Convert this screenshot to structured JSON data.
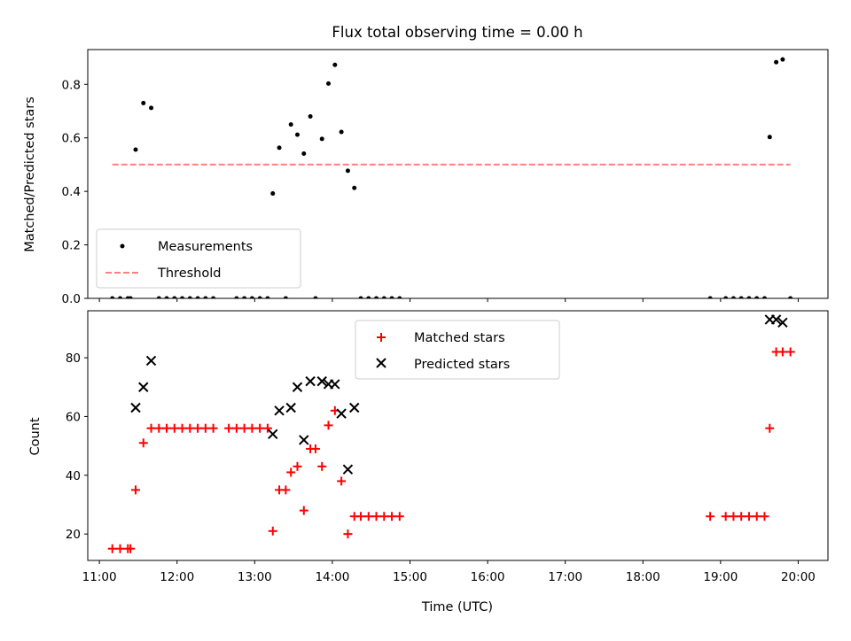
{
  "chart_data": [
    {
      "type": "scatter",
      "title": "Flux total observing time = 0.00 h",
      "xlabel": "",
      "ylabel": "Matched/Predicted stars",
      "xlim": [
        "10:51",
        "20:23"
      ],
      "ylim": [
        0,
        0.93
      ],
      "yticks": [
        0.0,
        0.2,
        0.4,
        0.6,
        0.8
      ],
      "ytick_labels": [
        "0.0",
        "0.2",
        "0.4",
        "0.6",
        "0.8"
      ],
      "legend": {
        "placement": "lower-left"
      },
      "series": [
        {
          "name": "Measurements",
          "kind": "scatter",
          "color": "#000000",
          "points": [
            [
              "11:10",
              0
            ],
            [
              "11:16",
              0
            ],
            [
              "11:22",
              0
            ],
            [
              "11:24",
              0
            ],
            [
              "11:28",
              0.556
            ],
            [
              "11:34",
              0.73
            ],
            [
              "11:40",
              0.712
            ],
            [
              "11:46",
              0
            ],
            [
              "11:52",
              0
            ],
            [
              "11:58",
              0
            ],
            [
              "12:04",
              0
            ],
            [
              "12:10",
              0
            ],
            [
              "12:16",
              0
            ],
            [
              "12:22",
              0
            ],
            [
              "12:28",
              0
            ],
            [
              "12:46",
              0
            ],
            [
              "12:52",
              0
            ],
            [
              "12:58",
              0
            ],
            [
              "13:04",
              0
            ],
            [
              "13:10",
              0
            ],
            [
              "13:14",
              0.392
            ],
            [
              "13:19",
              0.563
            ],
            [
              "13:24",
              0
            ],
            [
              "13:28",
              0.65
            ],
            [
              "13:33",
              0.612
            ],
            [
              "13:38",
              0.541
            ],
            [
              "13:43",
              0.68
            ],
            [
              "13:47",
              0
            ],
            [
              "13:52",
              0.596
            ],
            [
              "13:57",
              0.803
            ],
            [
              "14:02",
              0.873
            ],
            [
              "14:07",
              0.622
            ],
            [
              "14:12",
              0.477
            ],
            [
              "14:17",
              0.413
            ],
            [
              "14:22",
              0
            ],
            [
              "14:28",
              0
            ],
            [
              "14:34",
              0
            ],
            [
              "14:40",
              0
            ],
            [
              "14:46",
              0
            ],
            [
              "14:52",
              0
            ],
            [
              "18:52",
              0
            ],
            [
              "19:04",
              0
            ],
            [
              "19:10",
              0
            ],
            [
              "19:16",
              0
            ],
            [
              "19:22",
              0
            ],
            [
              "19:28",
              0
            ],
            [
              "19:34",
              0
            ],
            [
              "19:38",
              0.603
            ],
            [
              "19:43",
              0.883
            ],
            [
              "19:48",
              0.893
            ],
            [
              "19:54",
              0
            ]
          ]
        },
        {
          "name": "Threshold",
          "kind": "line",
          "style": "dashed",
          "color": "#ff7f7f",
          "points": [
            [
              "11:10",
              0.5
            ],
            [
              "19:54",
              0.5
            ]
          ]
        }
      ]
    },
    {
      "type": "scatter",
      "title": "",
      "xlabel": "Time (UTC)",
      "ylabel": "Count",
      "xlim": [
        "10:51",
        "20:23"
      ],
      "ylim": [
        11,
        96
      ],
      "yticks": [
        20,
        40,
        60,
        80
      ],
      "ytick_labels": [
        "20",
        "40",
        "60",
        "80"
      ],
      "xticks": [
        "11:00",
        "12:00",
        "13:00",
        "14:00",
        "15:00",
        "16:00",
        "17:00",
        "18:00",
        "19:00",
        "20:00"
      ],
      "xtick_labels": [
        "11:00",
        "12:00",
        "13:00",
        "14:00",
        "15:00",
        "16:00",
        "17:00",
        "18:00",
        "19:00",
        "20:00"
      ],
      "legend": {
        "placement": "upper-center"
      },
      "series": [
        {
          "name": "Matched stars",
          "kind": "scatter",
          "marker": "plus",
          "color": "#ff0000",
          "points": [
            [
              "11:10",
              15
            ],
            [
              "11:16",
              15
            ],
            [
              "11:22",
              15
            ],
            [
              "11:24",
              15
            ],
            [
              "11:28",
              35
            ],
            [
              "11:34",
              51
            ],
            [
              "11:40",
              56
            ],
            [
              "11:46",
              56
            ],
            [
              "11:52",
              56
            ],
            [
              "11:58",
              56
            ],
            [
              "12:04",
              56
            ],
            [
              "12:10",
              56
            ],
            [
              "12:16",
              56
            ],
            [
              "12:22",
              56
            ],
            [
              "12:28",
              56
            ],
            [
              "12:40",
              56
            ],
            [
              "12:46",
              56
            ],
            [
              "12:52",
              56
            ],
            [
              "12:58",
              56
            ],
            [
              "13:04",
              56
            ],
            [
              "13:10",
              56
            ],
            [
              "13:14",
              21
            ],
            [
              "13:19",
              35
            ],
            [
              "13:24",
              35
            ],
            [
              "13:28",
              41
            ],
            [
              "13:33",
              43
            ],
            [
              "13:38",
              28
            ],
            [
              "13:43",
              49
            ],
            [
              "13:47",
              49
            ],
            [
              "13:52",
              43
            ],
            [
              "13:57",
              57
            ],
            [
              "14:02",
              62
            ],
            [
              "14:07",
              38
            ],
            [
              "14:12",
              20
            ],
            [
              "14:17",
              26
            ],
            [
              "14:22",
              26
            ],
            [
              "14:28",
              26
            ],
            [
              "14:34",
              26
            ],
            [
              "14:40",
              26
            ],
            [
              "14:46",
              26
            ],
            [
              "14:52",
              26
            ],
            [
              "18:52",
              26
            ],
            [
              "19:04",
              26
            ],
            [
              "19:10",
              26
            ],
            [
              "19:16",
              26
            ],
            [
              "19:22",
              26
            ],
            [
              "19:28",
              26
            ],
            [
              "19:34",
              26
            ],
            [
              "19:38",
              56
            ],
            [
              "19:43",
              82
            ],
            [
              "19:48",
              82
            ],
            [
              "19:54",
              82
            ]
          ]
        },
        {
          "name": "Predicted stars",
          "kind": "scatter",
          "marker": "x",
          "color": "#000000",
          "points": [
            [
              "11:28",
              63
            ],
            [
              "11:34",
              70
            ],
            [
              "11:40",
              79
            ],
            [
              "13:14",
              54
            ],
            [
              "13:19",
              62
            ],
            [
              "13:28",
              63
            ],
            [
              "13:33",
              70
            ],
            [
              "13:38",
              52
            ],
            [
              "13:43",
              72
            ],
            [
              "13:52",
              72
            ],
            [
              "13:57",
              71
            ],
            [
              "14:02",
              71
            ],
            [
              "14:07",
              61
            ],
            [
              "14:12",
              42
            ],
            [
              "14:17",
              63
            ],
            [
              "19:38",
              93
            ],
            [
              "19:43",
              93
            ],
            [
              "19:48",
              92
            ]
          ]
        }
      ]
    }
  ]
}
